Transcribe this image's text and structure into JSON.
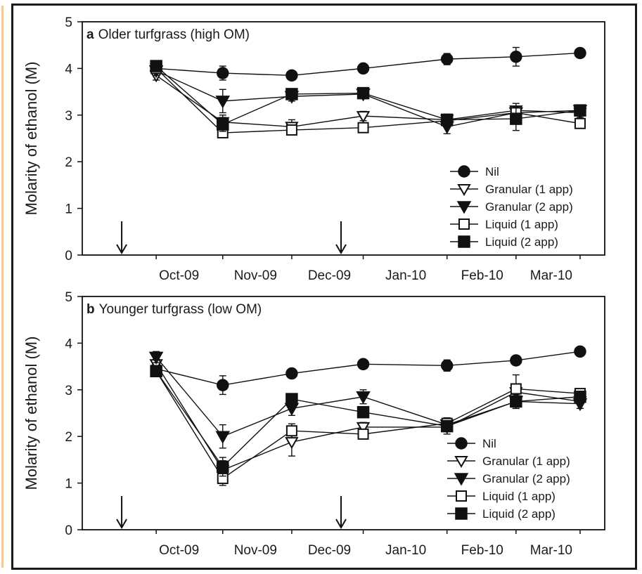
{
  "figure": {
    "accent_color": "#f3c79a",
    "frame_color": "#1a1a1a"
  },
  "chart_data": [
    {
      "type": "line",
      "panel_letter": "a",
      "title": "Older turfgrass (high OM)",
      "ylabel": "Molarity of ethanol (M)",
      "xlabel": "",
      "ylim": [
        0,
        5
      ],
      "yticks": [
        "0",
        "1",
        "2",
        "3",
        "4",
        "5"
      ],
      "x_tick_labels": [
        "Oct-09",
        "Nov-09",
        "Dec-09",
        "Jan-10",
        "Feb-10",
        "Mar-10"
      ],
      "x_dates": [
        "2009-09-24",
        "2009-10-21",
        "2009-11-18",
        "2009-12-17",
        "2010-01-20",
        "2010-02-17",
        "2010-03-15"
      ],
      "application_dates": [
        "2009-09-10",
        "2009-12-08"
      ],
      "grid": false,
      "legend_position": "bottom-right",
      "series": [
        {
          "name": "Nil",
          "marker": "circle",
          "values": [
            4.0,
            3.9,
            3.85,
            4.0,
            4.2,
            4.25,
            4.33
          ],
          "errors": [
            0.08,
            0.15,
            0.08,
            0.08,
            0.12,
            0.2,
            0.1
          ]
        },
        {
          "name": "Granular (1 app)",
          "marker": "triangle-down-open",
          "values": [
            3.85,
            2.85,
            2.75,
            2.98,
            2.9,
            3.1,
            3.05
          ],
          "errors": [
            0.1,
            0.15,
            0.15,
            0.1,
            0.1,
            0.15,
            0.1
          ]
        },
        {
          "name": "Granular (2 app)",
          "marker": "triangle-down",
          "values": [
            3.95,
            3.3,
            3.4,
            3.45,
            2.75,
            3.05,
            3.1
          ],
          "errors": [
            0.1,
            0.25,
            0.1,
            0.1,
            0.15,
            0.1,
            0.1
          ]
        },
        {
          "name": "Liquid (1 app)",
          "marker": "square-open",
          "values": [
            4.0,
            2.62,
            2.68,
            2.73,
            2.88,
            3.05,
            2.82
          ],
          "errors": [
            0.08,
            0.1,
            0.1,
            0.1,
            0.1,
            0.1,
            0.08
          ]
        },
        {
          "name": "Liquid (2 app)",
          "marker": "square",
          "values": [
            4.05,
            2.8,
            3.45,
            3.47,
            2.9,
            2.92,
            3.1
          ],
          "errors": [
            0.08,
            0.15,
            0.1,
            0.1,
            0.12,
            0.25,
            0.1
          ]
        }
      ]
    },
    {
      "type": "line",
      "panel_letter": "b",
      "title": "Younger turfgrass (low OM)",
      "ylabel": "Molarity of ethanol (M)",
      "xlabel": "",
      "ylim": [
        0,
        5
      ],
      "yticks": [
        "0",
        "1",
        "2",
        "3",
        "4",
        "5"
      ],
      "x_tick_labels": [
        "Oct-09",
        "Nov-09",
        "Dec-09",
        "Jan-10",
        "Feb-10",
        "Mar-10"
      ],
      "x_dates": [
        "2009-09-24",
        "2009-10-21",
        "2009-11-18",
        "2009-12-17",
        "2010-01-20",
        "2010-02-17",
        "2010-03-15"
      ],
      "application_dates": [
        "2009-09-10",
        "2009-12-08"
      ],
      "grid": false,
      "legend_position": "bottom-right",
      "series": [
        {
          "name": "Nil",
          "marker": "circle",
          "values": [
            3.45,
            3.1,
            3.35,
            3.55,
            3.52,
            3.63,
            3.82
          ],
          "errors": [
            0.1,
            0.2,
            0.08,
            0.08,
            0.12,
            0.1,
            0.1
          ]
        },
        {
          "name": "Granular (1 app)",
          "marker": "triangle-down-open",
          "values": [
            3.55,
            1.28,
            1.88,
            2.2,
            2.2,
            2.95,
            2.75
          ],
          "errors": [
            0.1,
            0.2,
            0.3,
            0.1,
            0.15,
            0.15,
            0.15
          ]
        },
        {
          "name": "Granular (2 app)",
          "marker": "triangle-down",
          "values": [
            3.7,
            2.0,
            2.6,
            2.85,
            2.25,
            2.75,
            2.7
          ],
          "errors": [
            0.12,
            0.25,
            0.15,
            0.15,
            0.15,
            0.15,
            0.1
          ]
        },
        {
          "name": "Liquid (1 app)",
          "marker": "square-open",
          "values": [
            3.4,
            1.1,
            2.12,
            2.05,
            2.28,
            3.02,
            2.92
          ],
          "errors": [
            0.08,
            0.15,
            0.15,
            0.1,
            0.1,
            0.3,
            0.1
          ]
        },
        {
          "name": "Liquid (2 app)",
          "marker": "square",
          "values": [
            3.4,
            1.35,
            2.8,
            2.52,
            2.22,
            2.75,
            2.85
          ],
          "errors": [
            0.08,
            0.2,
            0.1,
            0.1,
            0.1,
            0.15,
            0.1
          ]
        }
      ]
    }
  ]
}
